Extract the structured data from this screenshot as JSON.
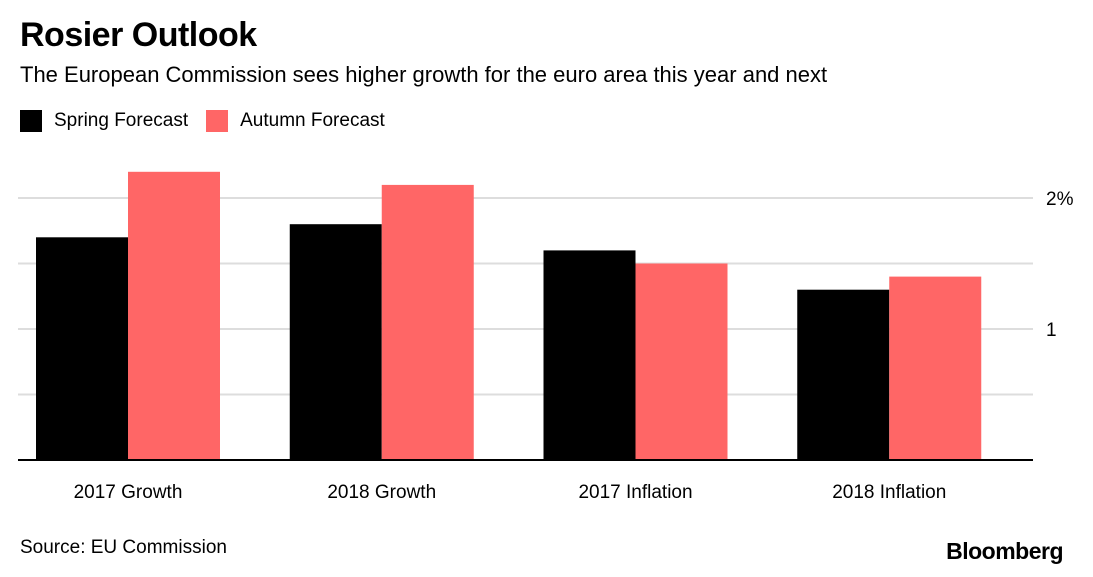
{
  "title": "Rosier Outlook",
  "subtitle": "The European Commission sees higher growth for the euro area this year and next",
  "source": "Source: EU Commission",
  "brand": "Bloomberg",
  "colors": {
    "spring": "#000000",
    "autumn": "#ff6666",
    "grid": "#dddddd",
    "axis": "#000000"
  },
  "chart_data": {
    "type": "bar",
    "title": "Rosier Outlook",
    "subtitle": "The European Commission sees higher growth for the euro area this year and next",
    "categories": [
      "2017 Growth",
      "2018 Growth",
      "2017 Inflation",
      "2018 Inflation"
    ],
    "series": [
      {
        "name": "Spring Forecast",
        "values": [
          1.7,
          1.8,
          1.6,
          1.3
        ]
      },
      {
        "name": "Autumn Forecast",
        "values": [
          2.2,
          2.1,
          1.5,
          1.4
        ]
      }
    ],
    "xlabel": "",
    "ylabel": "",
    "ylim": [
      0,
      2.2
    ],
    "yticks": [
      0.5,
      1,
      1.5,
      2
    ],
    "ytick_labels": [
      "",
      "1",
      "",
      "2%"
    ],
    "grid": true,
    "y_axis_side": "right",
    "legend_position": "top-left"
  }
}
